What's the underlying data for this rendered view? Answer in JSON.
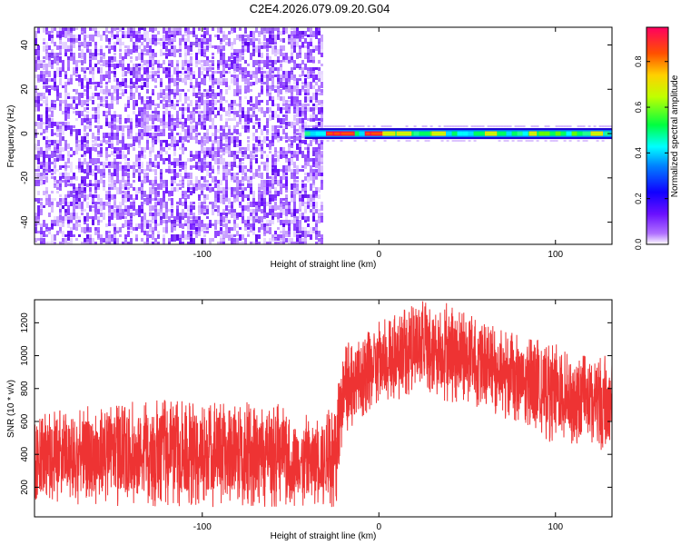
{
  "title": "C2E4.2026.079.09.20.G04",
  "chart_data": [
    {
      "type": "heatmap",
      "title": "C2E4.2026.079.09.20.G04",
      "xlabel": "Height of straight line (km)",
      "ylabel": "Frequency (Hz)",
      "xlim": [
        -195,
        132
      ],
      "ylim": [
        -50,
        48
      ],
      "x_ticks": [
        -100,
        0,
        100
      ],
      "x_tick_labels": [
        "-100",
        "0",
        "100"
      ],
      "y_ticks": [
        -40,
        -20,
        0,
        20,
        40
      ],
      "y_tick_labels": [
        "-40",
        "-20",
        "0",
        "20",
        "40"
      ],
      "colorbar": {
        "label": "Normalized spectral amplitude",
        "range": [
          0,
          0.95
        ],
        "ticks": [
          0.0,
          0.2,
          0.4,
          0.6,
          0.8
        ],
        "tick_labels": [
          "0.0",
          "0.2",
          "0.4",
          "0.6",
          "0.8"
        ],
        "colors": [
          "#ffffff",
          "#9b30ff",
          "#3a00ff",
          "#0080ff",
          "#00ffff",
          "#00ff40",
          "#a0ff00",
          "#ffff00",
          "#ff8000",
          "#ff0060"
        ]
      },
      "noise_region_x": [
        -195,
        -33
      ],
      "signal_band": {
        "x": [
          -42,
          132
        ],
        "freq": 0
      }
    },
    {
      "type": "line",
      "xlabel": "Height of straight line (km)",
      "ylabel": "SNR (10 * v/v)",
      "xlim": [
        -195,
        132
      ],
      "ylim": [
        20,
        1340
      ],
      "x_ticks": [
        -100,
        0,
        100
      ],
      "x_tick_labels": [
        "-100",
        "0",
        "100"
      ],
      "y_ticks": [
        200,
        400,
        600,
        800,
        1000,
        1200
      ],
      "y_tick_labels": [
        "200",
        "400",
        "600",
        "800",
        "1000",
        "1200"
      ],
      "color": "#ee3333",
      "envelope": {
        "x": [
          -195,
          -150,
          -100,
          -60,
          -40,
          -24,
          -22,
          -20,
          0,
          20,
          40,
          60,
          80,
          100,
          115,
          132
        ],
        "low": [
          80,
          80,
          80,
          80,
          80,
          60,
          360,
          500,
          700,
          760,
          720,
          680,
          560,
          460,
          440,
          420
        ],
        "high": [
          650,
          720,
          740,
          720,
          640,
          700,
          1000,
          1060,
          1220,
          1340,
          1320,
          1200,
          1120,
          1080,
          1000,
          1000
        ]
      }
    }
  ]
}
